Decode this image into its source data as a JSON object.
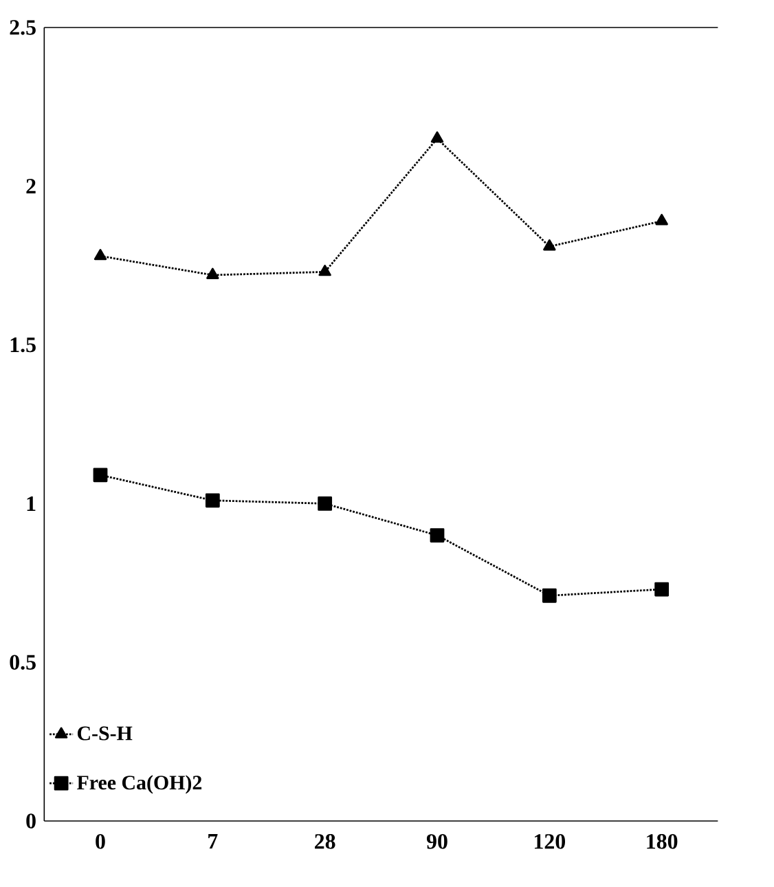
{
  "chart_data": {
    "type": "line",
    "categories": [
      "0",
      "7",
      "28",
      "90",
      "120",
      "180"
    ],
    "series": [
      {
        "name": "C-S-H",
        "color": "#000000",
        "marker": "triangle",
        "values": [
          1.78,
          1.72,
          1.73,
          2.15,
          1.81,
          1.89
        ]
      },
      {
        "name": "Free Ca(OH)2",
        "color": "#000000",
        "marker": "square",
        "values": [
          1.09,
          1.01,
          1.0,
          0.9,
          0.71,
          0.73
        ]
      }
    ],
    "ylim": [
      0,
      2.5
    ],
    "yticks": [
      0,
      0.5,
      1,
      1.5,
      2,
      2.5
    ],
    "grid": false,
    "legend": "bottom left",
    "line_style": "dotted"
  }
}
